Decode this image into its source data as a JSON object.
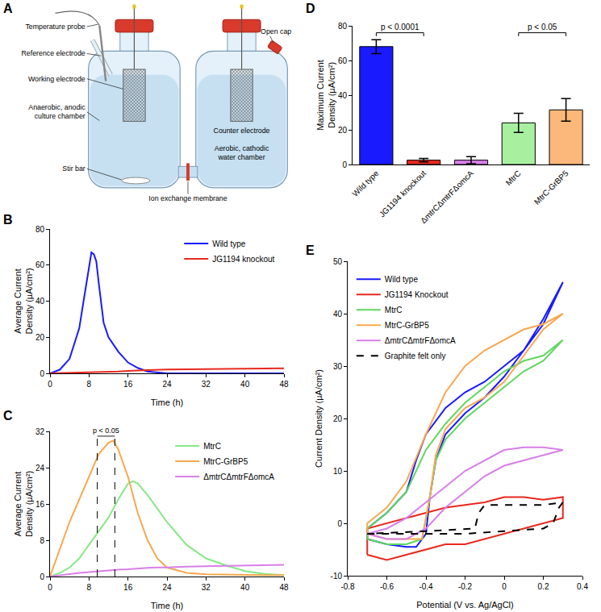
{
  "diagram": {
    "panel": "A",
    "labels": {
      "temperature_probe": "Temperature probe",
      "reference_electrode": "Reference electrode",
      "working_electrode": "Working electrode",
      "anodic_chamber": "Anaerobic, anodic culture chamber",
      "stir_bar": "Stir bar",
      "membrane": "Ion exchange membrane",
      "open_cap": "Open cap",
      "counter_electrode": "Counter electrode",
      "cathodic_chamber": "Aerobic, cathodic water chamber"
    }
  },
  "chart_data": [
    {
      "panel": "B",
      "type": "line",
      "x_label": "Time (h)",
      "y_label": "Average Current Density (µA/cm²)",
      "x": [
        0,
        2,
        4,
        6,
        7,
        8,
        8.5,
        9,
        9.5,
        10,
        10.5,
        11,
        12,
        13,
        14,
        16,
        18,
        20,
        24,
        32,
        40,
        48
      ],
      "series": [
        {
          "name": "Wild type",
          "color": "#1a1aff",
          "line_style": "solid",
          "values": [
            0,
            2,
            8,
            25,
            42,
            60,
            67,
            66,
            62,
            50,
            38,
            28,
            20,
            16,
            12,
            6,
            3,
            1,
            0,
            0,
            0,
            0
          ]
        },
        {
          "name": "JG1194 knockout",
          "color": "#e8281e",
          "line_style": "solid",
          "values": [
            0,
            0.1,
            0.2,
            0.4,
            0.5,
            0.5,
            0.5,
            0.6,
            0.6,
            0.6,
            0.7,
            0.7,
            0.8,
            0.9,
            1,
            1.3,
            1.6,
            1.8,
            2.1,
            2.4,
            2.6,
            2.8
          ]
        }
      ],
      "xlim": [
        0,
        48
      ],
      "xticks": [
        0,
        8,
        16,
        24,
        32,
        40,
        48
      ],
      "ylim": [
        0,
        80
      ],
      "yticks": [
        0,
        20,
        40,
        60,
        80
      ],
      "grid": false,
      "legend": "upper right"
    },
    {
      "panel": "C",
      "type": "line",
      "x_label": "Time (h)",
      "y_label": "Average Current Density (µA/cm²)",
      "x": [
        0,
        2,
        4,
        6,
        8,
        10,
        12,
        13,
        14,
        16,
        17,
        18,
        20,
        22,
        24,
        28,
        32,
        36,
        40,
        44,
        48
      ],
      "series": [
        {
          "name": "MtrC",
          "color": "#86e886",
          "line_style": "solid",
          "values": [
            0,
            0.8,
            2,
            4,
            7,
            10,
            13,
            15,
            17,
            20.5,
            21,
            20.5,
            18,
            15,
            12,
            7,
            4,
            2.5,
            1.2,
            0.6,
            0.3
          ]
        },
        {
          "name": "MtrC-GrBP5",
          "color": "#f7a84e",
          "line_style": "solid",
          "values": [
            0,
            6,
            12,
            17,
            22,
            27,
            29.5,
            30,
            28,
            22,
            18,
            14,
            8,
            4,
            2,
            0.8,
            0.5,
            0.4,
            0.3,
            0.3,
            0.3
          ]
        },
        {
          "name": "ΔmtrCΔmtrFΔomcA",
          "color": "#d77fe8",
          "line_style": "solid",
          "values": [
            0,
            0.3,
            0.6,
            0.8,
            1,
            1.2,
            1.4,
            1.5,
            1.5,
            1.6,
            1.7,
            1.8,
            1.9,
            2,
            2,
            2.2,
            2.3,
            2.4,
            2.5,
            2.5,
            2.6
          ]
        }
      ],
      "brackets": [
        {
          "text": "p < 0.05",
          "x": [
            9.7,
            13.3
          ],
          "y": 31
        }
      ],
      "xlim": [
        0,
        48
      ],
      "xticks": [
        0,
        8,
        16,
        24,
        32,
        40,
        48
      ],
      "ylim": [
        0,
        32
      ],
      "yticks": [
        0,
        8,
        16,
        24,
        32
      ],
      "grid": false,
      "legend": "upper right"
    },
    {
      "panel": "D",
      "type": "bar",
      "y_label": "Maximum Current Density (µA/cm²)",
      "categories": [
        "Wild type",
        "JG1194 knockout",
        "ΔmtrCΔmtrFΔomcA",
        "MtrC",
        "MtrC-GrBP5"
      ],
      "values": [
        68,
        2.5,
        2.5,
        24,
        31.5
      ],
      "errors": [
        4,
        1,
        2,
        5.5,
        6.5
      ],
      "colors": [
        "#1a1aff",
        "#e8281e",
        "#d77fe8",
        "#a8f0a0",
        "#fbb87a"
      ],
      "brackets": [
        {
          "text": "p < 0.0001",
          "between": [
            0,
            1
          ],
          "y": 76
        },
        {
          "text": "p < 0.05",
          "between": [
            3,
            4
          ],
          "y": 76
        }
      ],
      "ylim": [
        0,
        80
      ],
      "yticks": [
        0,
        20,
        40,
        60,
        80
      ],
      "grid": false
    },
    {
      "panel": "E",
      "type": "line",
      "x_label": "Potential (V vs. Ag/AgCl)",
      "y_label": "Current Density (µA/cm²)",
      "series": [
        {
          "name": "Wild type",
          "color": "#1a1aff",
          "line_style": "solid",
          "x": [
            -0.7,
            -0.6,
            -0.5,
            -0.45,
            -0.4,
            -0.38,
            -0.35,
            -0.3,
            -0.2,
            -0.1,
            0,
            0.1,
            0.2,
            0.3,
            0.2,
            0.1,
            0,
            -0.1,
            -0.2,
            -0.3,
            -0.4,
            -0.45,
            -0.5,
            -0.6,
            -0.7,
            -0.7
          ],
          "values": [
            -3,
            -4,
            -4.5,
            -4.5,
            -2,
            5,
            12,
            17,
            21,
            24,
            28,
            33,
            39,
            46,
            38,
            33,
            30,
            27,
            25,
            22,
            17,
            12,
            6,
            2,
            -1,
            -3
          ]
        },
        {
          "name": "JG1194 Knockout",
          "color": "#e8281e",
          "line_style": "solid",
          "x": [
            -0.7,
            -0.6,
            -0.5,
            -0.4,
            -0.3,
            -0.2,
            -0.1,
            0,
            0.1,
            0.2,
            0.3,
            0.3,
            0.2,
            0.1,
            0,
            -0.1,
            -0.2,
            -0.3,
            -0.4,
            -0.5,
            -0.6,
            -0.7,
            -0.7
          ],
          "values": [
            -6,
            -7,
            -6,
            -5,
            -4,
            -4,
            -3,
            -2,
            -1,
            0,
            1,
            5,
            4.5,
            5,
            5,
            4,
            3.5,
            3,
            2,
            1,
            0,
            -1,
            -6
          ]
        },
        {
          "name": "MtrC",
          "color": "#5ed85e",
          "line_style": "solid",
          "x": [
            -0.7,
            -0.6,
            -0.5,
            -0.42,
            -0.38,
            -0.35,
            -0.3,
            -0.2,
            -0.1,
            0,
            0.1,
            0.2,
            0.3,
            0.2,
            0.1,
            0,
            -0.1,
            -0.2,
            -0.3,
            -0.4,
            -0.5,
            -0.6,
            -0.7,
            -0.7
          ],
          "values": [
            -3,
            -4,
            -4,
            -3,
            5,
            12,
            16,
            20,
            23,
            26,
            29,
            31,
            35,
            32,
            31,
            29,
            26,
            23,
            19,
            14,
            6,
            2,
            -1,
            -3
          ]
        },
        {
          "name": "MtrC-GrBP5",
          "color": "#f7a84e",
          "line_style": "solid",
          "x": [
            -0.7,
            -0.6,
            -0.5,
            -0.42,
            -0.38,
            -0.35,
            -0.3,
            -0.2,
            -0.1,
            0,
            0.1,
            0.2,
            0.3,
            0.2,
            0.1,
            0,
            -0.1,
            -0.2,
            -0.3,
            -0.4,
            -0.5,
            -0.6,
            -0.7,
            -0.7
          ],
          "values": [
            -2,
            -3,
            -3,
            -3,
            5,
            13,
            18,
            22,
            24,
            27,
            32,
            37,
            40,
            38,
            37,
            35,
            33,
            30,
            25,
            17,
            8,
            3,
            0,
            -2
          ]
        },
        {
          "name": "ΔmtrCΔmtrFΔomcA",
          "color": "#d77fe8",
          "line_style": "solid",
          "x": [
            -0.7,
            -0.6,
            -0.5,
            -0.4,
            -0.3,
            -0.2,
            -0.1,
            0,
            0.1,
            0.2,
            0.3,
            0.2,
            0.1,
            0,
            -0.1,
            -0.2,
            -0.3,
            -0.4,
            -0.5,
            -0.6,
            -0.7
          ],
          "values": [
            -2,
            -3,
            -3,
            -1,
            3,
            6,
            9,
            11,
            12,
            13,
            14,
            14.5,
            14.5,
            14,
            12,
            10,
            7,
            4,
            1,
            -1,
            -2
          ]
        },
        {
          "name": "Graphite felt only",
          "color": "#000000",
          "line_style": "dash",
          "x": [
            -0.7,
            -0.4,
            -0.2,
            0,
            0.2,
            0.25,
            0.28,
            0.3,
            0.2,
            0,
            -0.1,
            -0.13,
            -0.15,
            -0.4,
            -0.7
          ],
          "values": [
            -2,
            -2,
            -2,
            -1.5,
            -1,
            0,
            3,
            4,
            3.5,
            3.5,
            3.5,
            2,
            -1,
            -1.5,
            -2
          ]
        }
      ],
      "xlim": [
        -0.8,
        0.4
      ],
      "xticks": [
        -0.8,
        -0.6,
        -0.4,
        -0.2,
        0,
        0.2,
        0.4
      ],
      "ylim": [
        -10,
        50
      ],
      "yticks": [
        -10,
        0,
        10,
        20,
        30,
        40,
        50
      ],
      "grid": false,
      "legend": "upper left"
    }
  ]
}
